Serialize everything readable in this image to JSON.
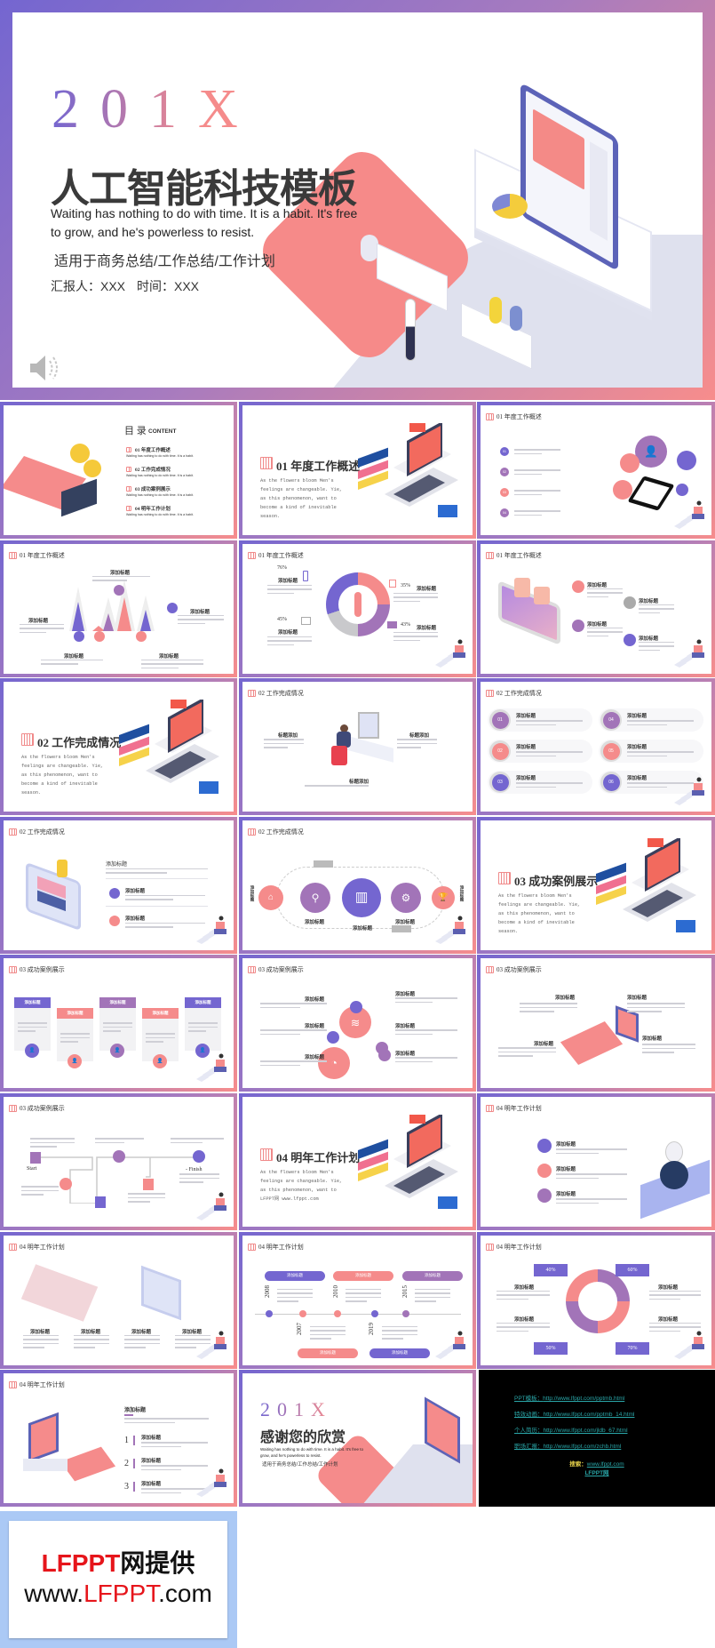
{
  "colors": {
    "purple": "#7466d0",
    "violet": "#a274b8",
    "pink": "#f58b8b",
    "footer_blue": "#abc9f5",
    "link": "#2aa7a9"
  },
  "cover": {
    "year": "201X",
    "title": "人工智能科技模板",
    "subtitle_en": "Waiting has nothing to do with time. It is a habit. It's free to grow, and he's powerless to resist.",
    "subtitle_cn": "适用于商务总结/工作总结/工作计划",
    "reporter": "汇报人：XXX",
    "time": "时间：XXX",
    "audio_icon": "speaker-icon"
  },
  "toc": {
    "title": "目 录",
    "title_en": "CONTENT",
    "items": [
      {
        "label": "01 年度工作概述",
        "desc": "Waiting has nothing to do with time. It is a habit."
      },
      {
        "label": "02 工作完成情况",
        "desc": "Waiting has nothing to do with time. It is a habit."
      },
      {
        "label": "03 成功案例展示",
        "desc": "Waiting has nothing to do with time. It is a habit."
      },
      {
        "label": "04 明年工作计划",
        "desc": "Waiting has nothing to do with time. It is a habit."
      }
    ]
  },
  "sections": {
    "s1": {
      "title": "01 年度工作概述",
      "body": "As the flowers bloom Men's feelings are changeable. Yie, as this phenomenon, want to become a kind of inevitable season."
    },
    "s2": {
      "title": "02 工作完成情况",
      "body": "As the flowers bloom Men's feelings are changeable. Yie, as this phenomenon, want to become a kind of inevitable season."
    },
    "s3": {
      "title": "03 成功案例展示",
      "body": "As the flowers bloom Men's feelings are changeable. Yie, as this phenomenon, want to become a kind of inevitable season."
    },
    "s4": {
      "title": "04 明年工作计划",
      "body": "As the flowers bloom Men's feelings are changeable. Yie, as this phenomenon, want to LFPPT网 www.lfppt.com"
    }
  },
  "headers": {
    "h1": "01 年度工作概述",
    "h2": "02 工作完成情况",
    "h3": "03 成功案例展示",
    "h4": "04 明年工作计划"
  },
  "common": {
    "add_title": "添加标题",
    "title_add": "标题添加"
  },
  "hex_nums": [
    "01",
    "02",
    "03",
    "04"
  ],
  "card_nums": [
    "01",
    "02",
    "03",
    "04",
    "05",
    "06"
  ],
  "donut": {
    "p1": "76%",
    "p2": "35%",
    "p3": "45%",
    "p4": "43%"
  },
  "path": {
    "start": "Start",
    "finish": "- Finish"
  },
  "timeline": {
    "top_years": [
      "2008",
      "2010",
      "2015"
    ],
    "bottom_years": [
      "2007",
      "2019"
    ]
  },
  "ring": {
    "p1": "40%",
    "p2": "60%",
    "p3": "50%",
    "p4": "70%"
  },
  "steps": [
    "1",
    "2",
    "3"
  ],
  "thanks": {
    "year": "201X",
    "title": "感谢您的欣赏",
    "subtitle_en": "Waiting has nothing to do with time. It is a habit. It's free to grow, and he's powerless to resist.",
    "subtitle_cn": "适用于商务总结/工作总结/工作计划"
  },
  "links": {
    "items": [
      {
        "label": "PPT模板：",
        "url": "http://www.lfppt.com/pptmb.html"
      },
      {
        "label": "特效动画：",
        "url": "http://www.lfppt.com/pptmb_14.html"
      },
      {
        "label": "个人简历：",
        "url": "http://www.lfppt.com/jldb_67.html"
      },
      {
        "label": "职场汇报：",
        "url": "http://www.lfppt.com/zchb.html"
      }
    ],
    "search_label": "搜索：",
    "search_url": "www.lfppt.com",
    "site_name": "LFPPT网"
  },
  "footer": {
    "line1_brand": "LFPPT",
    "line1_rest": "网提供",
    "line2_pre": "www.",
    "line2_brand": "LFPPT",
    "line2_post": ".com"
  }
}
